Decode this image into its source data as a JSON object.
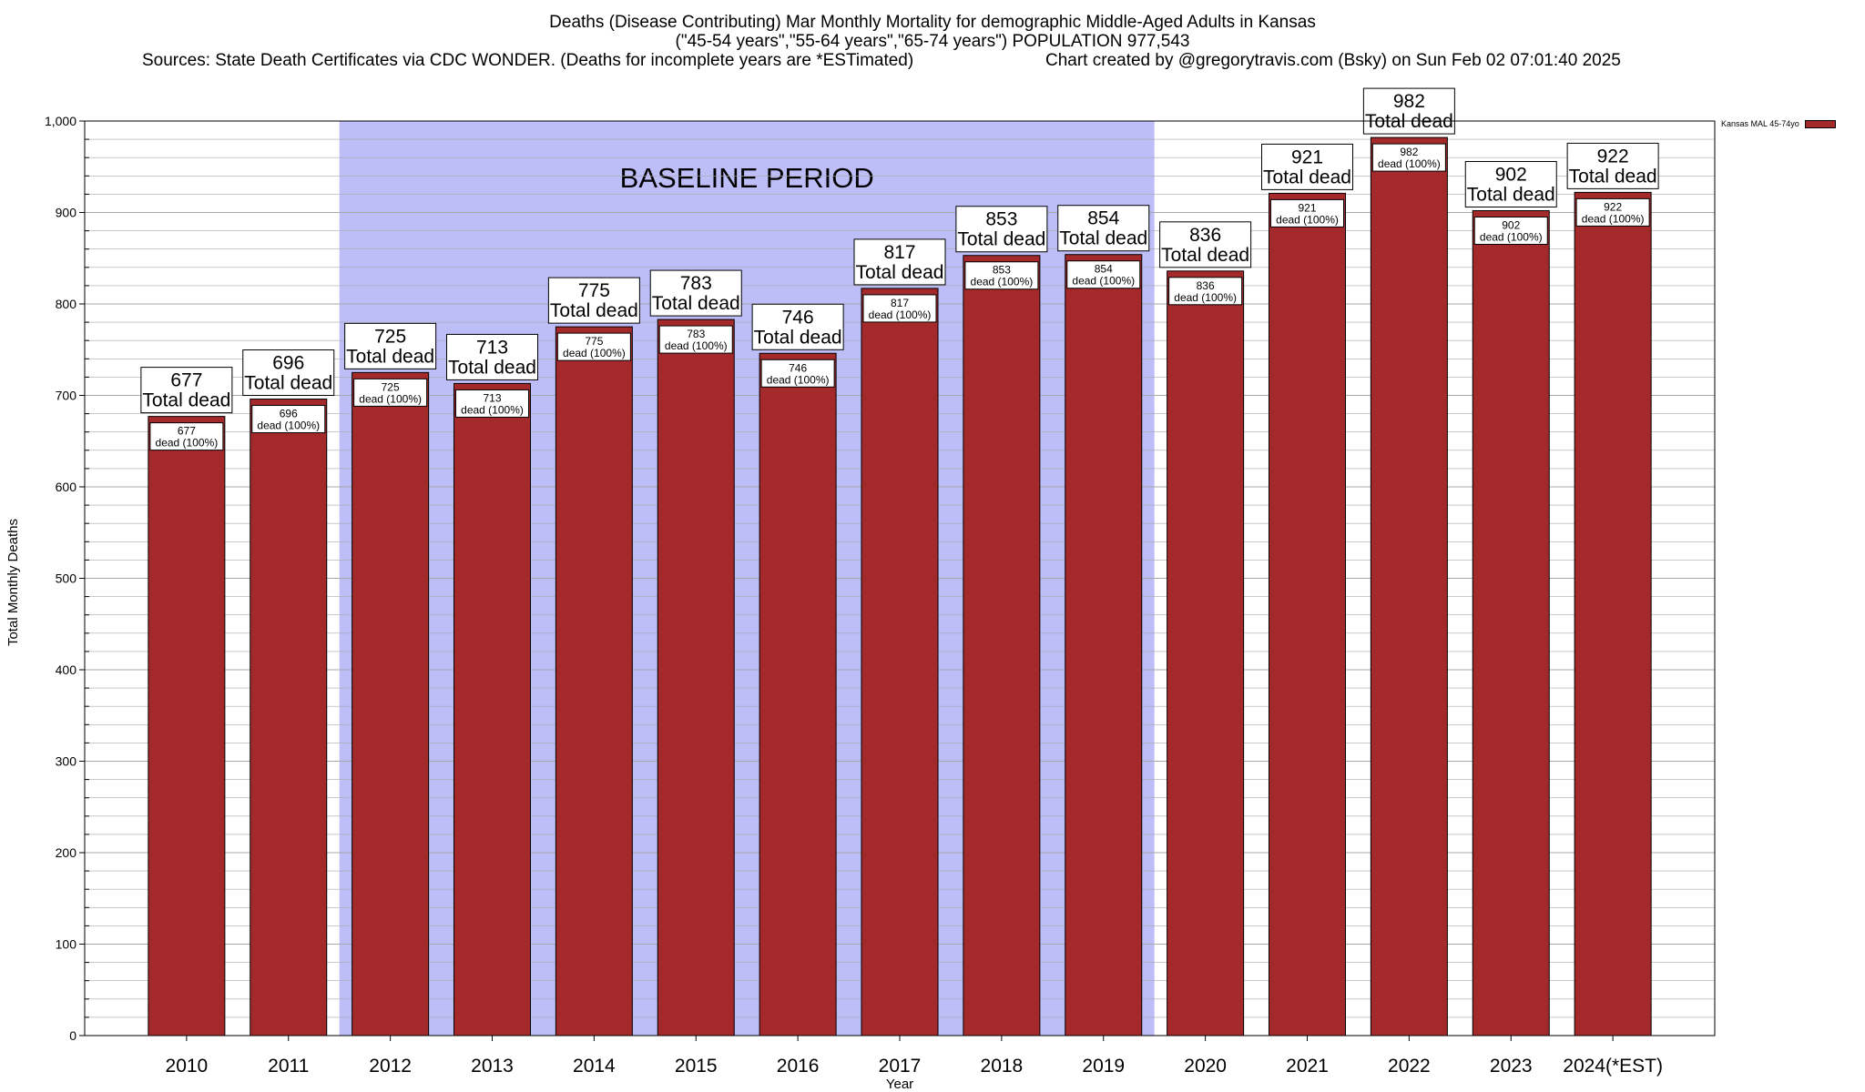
{
  "title": {
    "line1": "Deaths (Disease Contributing) Mar Monthly Mortality for demographic Middle-Aged Adults in Kansas",
    "line2": "(\"45-54 years\",\"55-64 years\",\"65-74 years\") POPULATION 977,543",
    "sources": "Sources: State Death Certificates via CDC WONDER. (Deaths for incomplete years are *ESTimated)",
    "credit": "Chart created by @gregorytravis.com (Bsky) on Sun Feb 02 07:01:40 2025"
  },
  "legend": {
    "label": "Kansas MAL 45-74yo",
    "color": "#a4292a"
  },
  "chart_data": {
    "type": "bar",
    "title": "Deaths (Disease Contributing) Mar Monthly Mortality for demographic Middle-Aged Adults in Kansas",
    "xlabel": "Year",
    "ylabel": "Total Monthly Deaths",
    "ylim": [
      0,
      1000
    ],
    "yticks": [
      0,
      100,
      200,
      300,
      400,
      500,
      600,
      700,
      800,
      900,
      1000
    ],
    "ytick_labels": [
      "0",
      "100",
      "200",
      "300",
      "400",
      "500",
      "600",
      "700",
      "800",
      "900",
      "1,000"
    ],
    "categories": [
      "2010",
      "2011",
      "2012",
      "2013",
      "2014",
      "2015",
      "2016",
      "2017",
      "2018",
      "2019",
      "2020",
      "2021",
      "2022",
      "2023",
      "2024(*EST)"
    ],
    "series": [
      {
        "name": "Kansas MAL 45-74yo",
        "values": [
          677,
          696,
          725,
          713,
          775,
          783,
          746,
          817,
          853,
          854,
          836,
          921,
          982,
          902,
          922
        ]
      }
    ],
    "bar_color": "#a4292a",
    "top_label_suffix": "Total dead",
    "inner_label_suffix": "dead (100%)",
    "baseline_period": {
      "label": "BASELINE PERIOD",
      "from": "2012",
      "to": "2019",
      "color": "#bdbdf8"
    },
    "grid": true,
    "legend_position": "top-right"
  }
}
